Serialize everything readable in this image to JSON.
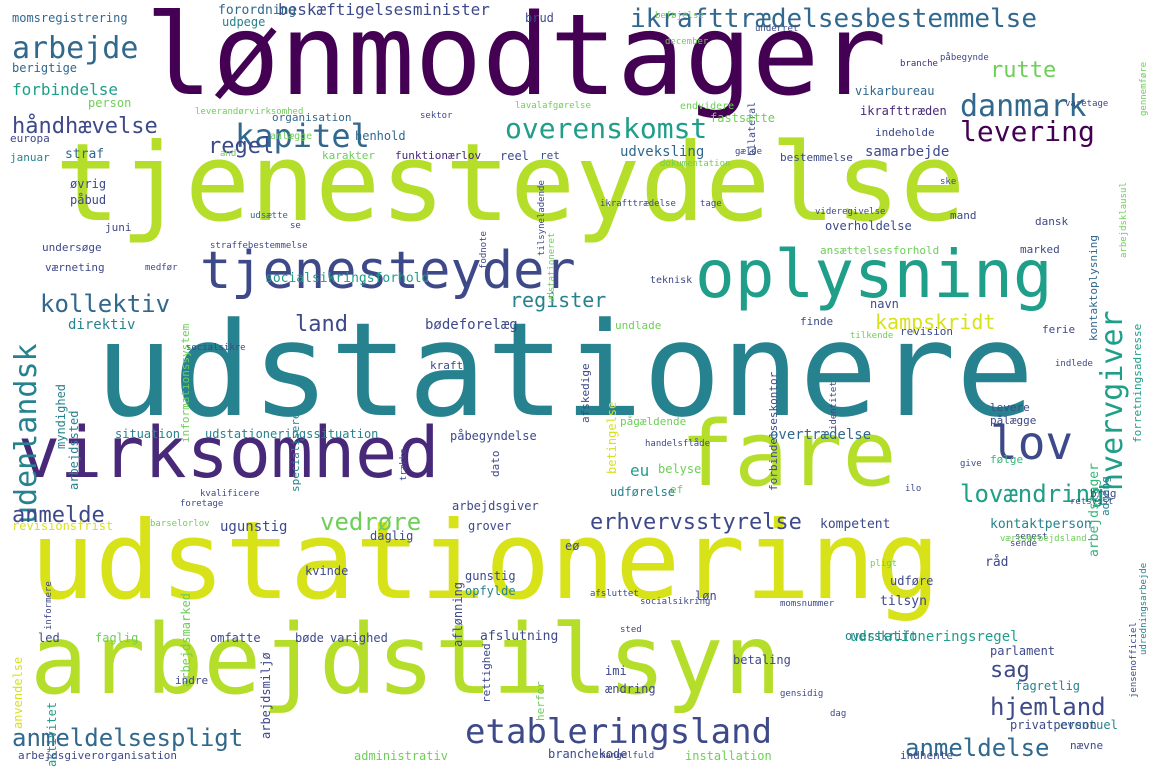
{
  "palette": {
    "purple_dark": "#440154",
    "purple": "#482878",
    "indigo": "#3e4989",
    "blue": "#31688e",
    "teal": "#26828e",
    "teal_green": "#1f9e89",
    "green": "#35b779",
    "lime": "#6ece58",
    "yellow_green": "#b5de2b",
    "yellow": "#d8e219"
  },
  "words": [
    "lønmodtager",
    "tjenesteydelse",
    "udstationere",
    "udstationering",
    "arbejdstilsyn",
    "virksomhed",
    "fare",
    "oplysning",
    "tjenesteyder",
    "kapitel",
    "danmark",
    "lov",
    "arbejde",
    "hvervgiver",
    "udenlandsk",
    "ikrafttrædelsesbestemmelse",
    "overenskomst",
    "håndhævelse",
    "levering",
    "regel",
    "rutte",
    "etableringsland",
    "anmeldelsespligt",
    "erhvervsstyrelse",
    "anmeldelse",
    "hjemland",
    "kollektiv",
    "register",
    "land",
    "kampskridt",
    "lovændring",
    "vedrøre",
    "anmelde",
    "sag",
    "beskæftigelsesminister",
    "forbindelse",
    "momsregistrering",
    "beføjelse",
    "forordning",
    "udpege",
    "brud",
    "berigtige",
    "person",
    "straf",
    "europa",
    "januar",
    "organisation",
    "henhold",
    "anlægge",
    "karakter",
    "funktionærlov",
    "udveksling",
    "reel",
    "ret",
    "samarbejde",
    "indeholde",
    "bestemmelse",
    "ikrafttræden",
    "vikarbureau",
    "bilateral",
    "fastsætte",
    "socialsikringsforhold",
    "direktiv",
    "bødeforelæg",
    "undlade",
    "myndighed",
    "arbejdssted",
    "kontaktoplysning",
    "forretningsadresse",
    "arbejdstager",
    "ansættelsesforhold",
    "overholdelse",
    "marked",
    "mand",
    "dansk",
    "sektor",
    "endvidere",
    "øvrig",
    "påbud",
    "juni",
    "undersøge",
    "værneting",
    "medfør",
    "informationssystem",
    "teknisk",
    "navn",
    "revision",
    "finde",
    "ferie",
    "situation",
    "udstationeringssituation",
    "påbegyndelse",
    "betingelse",
    "pågældende",
    "følge",
    "pålægge",
    "levere",
    "kraft",
    "afskedige",
    "specialisere",
    "forbindelseskontor",
    "overtrædelse",
    "eu",
    "belyse",
    "ef",
    "udførelse",
    "arbejdsgiver",
    "adgang",
    "brug",
    "ugunstig",
    "revisionsfrist",
    "daglig",
    "grover",
    "kompetent",
    "kontaktperson",
    "eø",
    "gunstig",
    "opfylde",
    "løn",
    "udføre",
    "tilsyn",
    "udstationeringsregel",
    "kvinde",
    "aflønning",
    "led",
    "faglig",
    "omfatte",
    "bøde",
    "varighed",
    "afslutning",
    "overskrift",
    "parlament",
    "anvendelse",
    "aktivitet",
    "arbejdsmarked",
    "indre",
    "arbejdsmiljø",
    "rettighed",
    "herfor",
    "ændring",
    "betaling",
    "imi",
    "fagretlig",
    "eventuel",
    "privatperson",
    "administrativ",
    "branchekode",
    "installation",
    "indhente",
    "nævne",
    "arbejdsgiverorganisation",
    "informere",
    "barselorlov",
    "dato",
    "foretage",
    "kvalificere",
    "råd",
    "mangelfuld",
    "december",
    "branche",
    "påbegynde",
    "sted",
    "sende",
    "momsnummer",
    "gensidig",
    "dag",
    "tilkende",
    "identitet",
    "indlede",
    "give",
    "ilo",
    "retsvist",
    "senest",
    "udredningsarbejde",
    "jensenofficiel",
    "pligt",
    "værtsarbejdsland",
    "gennemføre",
    "varetage",
    "videregivelse",
    "dokumentation",
    "gælde",
    "ske",
    "lavalafgørelse",
    "fodnote",
    "se",
    "udsætte",
    "straffebestemmelse",
    "socialsikre",
    "tilsyneladende",
    "handelsflåde",
    "trække",
    "underret",
    "leverandørvirksomhed",
    "and",
    "ikrafttrædelse",
    "afsluttet",
    "socialsikring",
    "udstationeret",
    "tage",
    "arbejdsklausul",
    "tradition",
    "forbud"
  ]
}
